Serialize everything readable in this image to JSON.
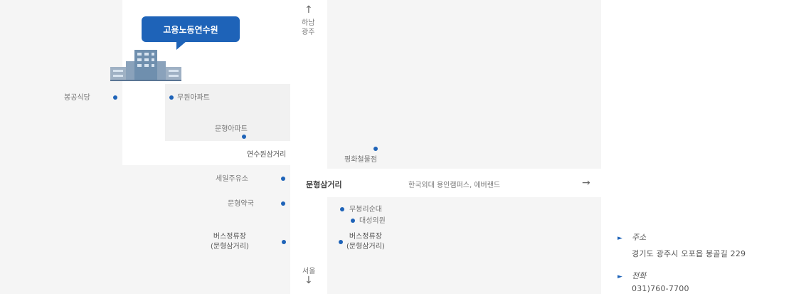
{
  "map": {
    "institute": "고용노동연수원",
    "north": "하남\n광주",
    "south": "서울",
    "east_road": "한국외대 용인캠퍼스, 에버랜드",
    "intersection": "문형삼거리",
    "places": {
      "bonggong_restaurant": "봉공식당",
      "muwon_apt": "무원아파트",
      "munhyeong_apt": "문형아파트",
      "yeonsuwon_junction": "연수원삼거리",
      "pyeonghwa_cheoljeom": "평화철물점",
      "sejeil_gas": "세일주유소",
      "munhyeong_pharmacy": "문형약국",
      "mugung_church": "무봉리순대",
      "daeseong_clinic": "대성의원",
      "bus_stop_left": "버스정류장\n(문형삼거리)",
      "bus_stop_right": "버스정류장\n(문형삼거리)"
    }
  },
  "info": {
    "address_title": "주소",
    "address": "경기도 광주시 오포읍 봉골길 229",
    "phone_title": "전화",
    "phone": "031)760-7700"
  },
  "colors": {
    "accent": "#1e63b8",
    "map_bg": "#f5f5f5"
  },
  "icons": {
    "up": "arrow-up-icon",
    "down": "arrow-down-icon",
    "right": "arrow-right-icon"
  }
}
